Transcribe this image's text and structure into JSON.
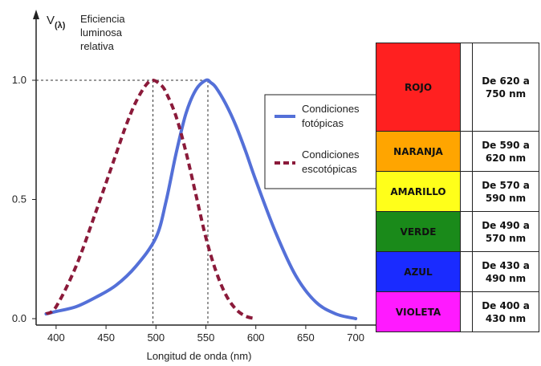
{
  "chart_data": {
    "type": "line",
    "ylabel_symbol": "V",
    "ylabel_sub": "(λ)",
    "ylabel_lines": [
      "Eficiencia",
      "luminosa",
      "relativa"
    ],
    "xlabel": "Longitud de onda (nm)",
    "xlim": [
      380,
      720
    ],
    "ylim": [
      0,
      1.0
    ],
    "x_ticks": [
      400,
      450,
      500,
      550,
      600,
      650,
      700
    ],
    "y_ticks": [
      "0.0",
      "0.5",
      "1.0"
    ],
    "y_tick_values": [
      0,
      0.5,
      1.0
    ],
    "reference_lines": [
      {
        "x": 497,
        "y": 1.0,
        "color": "#333333"
      },
      {
        "x": 552,
        "y": 1.0,
        "color": "#333333"
      }
    ],
    "series": [
      {
        "name": "Condiciones fotópicas",
        "color": "#5470d8",
        "style": "solid",
        "x": [
          390,
          400,
          420,
          440,
          460,
          480,
          500,
          510,
          520,
          530,
          540,
          550,
          555,
          560,
          570,
          580,
          590,
          600,
          620,
          640,
          660,
          680,
          700
        ],
        "y": [
          0.02,
          0.03,
          0.05,
          0.09,
          0.14,
          0.22,
          0.34,
          0.49,
          0.69,
          0.86,
          0.96,
          1.0,
          0.99,
          0.97,
          0.9,
          0.81,
          0.7,
          0.58,
          0.36,
          0.18,
          0.07,
          0.02,
          0.0
        ]
      },
      {
        "name": "Condiciones escotópicas",
        "color": "#8b1a3a",
        "style": "dashed",
        "x": [
          390,
          400,
          420,
          440,
          460,
          470,
          480,
          490,
          497,
          505,
          510,
          520,
          530,
          540,
          550,
          560,
          570,
          580,
          590,
          600
        ],
        "y": [
          0.02,
          0.05,
          0.22,
          0.45,
          0.69,
          0.81,
          0.91,
          0.98,
          1.0,
          0.98,
          0.95,
          0.85,
          0.7,
          0.52,
          0.34,
          0.2,
          0.1,
          0.04,
          0.01,
          0.0
        ]
      }
    ],
    "legend": {
      "placement": "center-right",
      "entries": [
        {
          "lines": [
            "Condiciones",
            "fotópicas"
          ],
          "color": "#5470d8",
          "style": "solid"
        },
        {
          "lines": [
            "Condiciones",
            "escotópicas"
          ],
          "color": "#8b1a3a",
          "style": "dashed"
        }
      ]
    }
  },
  "color_table": [
    {
      "name": "ROJO",
      "color": "#ff2020",
      "range_line1": "De 620 a",
      "range_line2": "750 nm"
    },
    {
      "name": "NARANJA",
      "color": "#ffa500",
      "range_line1": "De 590 a",
      "range_line2": "620 nm"
    },
    {
      "name": "AMARILLO",
      "color": "#ffff1a",
      "range_line1": "De 570 a",
      "range_line2": "590 nm"
    },
    {
      "name": "VERDE",
      "color": "#1a8a1a",
      "range_line1": "De 490 a",
      "range_line2": "570 nm"
    },
    {
      "name": "AZUL",
      "color": "#1a2bff",
      "range_line1": "De 430 a",
      "range_line2": "490 nm"
    },
    {
      "name": "VIOLETA",
      "color": "#ff1aff",
      "range_line1": "De 400 a",
      "range_line2": "430 nm"
    }
  ]
}
